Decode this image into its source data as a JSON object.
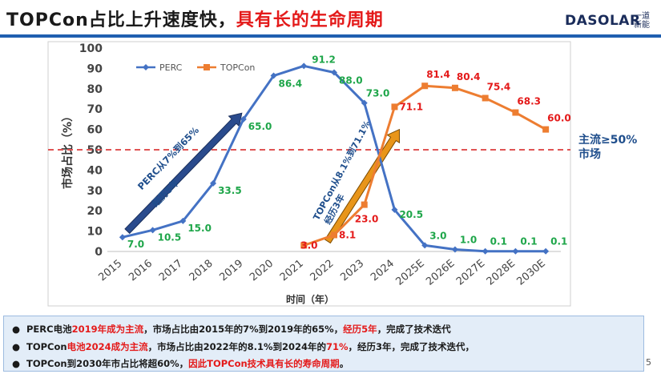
{
  "header": {
    "title_black": "TOPCon占比上升速度快，",
    "title_red": "具有长的生命周期",
    "logo_brand": "DASOLAR",
    "logo_sub_line1": "一道",
    "logo_sub_line2": "新能"
  },
  "chart_data": {
    "type": "line",
    "categories": [
      "2015",
      "2016",
      "2017",
      "2018",
      "2019",
      "2020",
      "2021",
      "2022",
      "2023",
      "2024",
      "2025E",
      "2026E",
      "2027E",
      "2028E",
      "2030E"
    ],
    "series": [
      {
        "name": "PERC",
        "color": "#4472c4",
        "label_color": "#1fa64a",
        "values": [
          7.0,
          10.5,
          15.0,
          33.5,
          65.0,
          86.4,
          91.2,
          88.0,
          73.0,
          20.5,
          3.0,
          1.0,
          0.1,
          0.1,
          0.1
        ],
        "labels": [
          "7.0",
          "10.5",
          "15.0",
          "33.5",
          "65.0",
          "86.4",
          "91.2",
          "88.0",
          "73.0",
          "20.5",
          "3.0",
          "1.0",
          "0.1",
          "0.1",
          "0.1"
        ]
      },
      {
        "name": "TOPCon",
        "color": "#ed7d31",
        "label_color": "#e41a1a",
        "values": [
          null,
          null,
          null,
          null,
          null,
          null,
          3.0,
          8.1,
          23.0,
          71.1,
          81.4,
          80.4,
          75.4,
          68.3,
          60.0
        ],
        "labels": [
          "",
          "",
          "",
          "",
          "",
          "",
          "3.0",
          "8.1",
          "23.0",
          "71.1",
          "81.4",
          "80.4",
          "75.4",
          "68.3",
          "60.0"
        ]
      }
    ],
    "ylabel": "市场占比（%）",
    "xlabel": "时间（年）",
    "ylim": [
      0,
      100
    ],
    "yticks": [
      "0",
      "10",
      "20",
      "30",
      "40",
      "50",
      "60",
      "70",
      "80",
      "90",
      "100"
    ],
    "threshold": {
      "value": 50,
      "label_line1": "主流≥50%",
      "label_line2": "市场",
      "color": "#e05555"
    },
    "annotations": [
      {
        "line1": "PERC从7%到65%",
        "line2": "经历5年"
      },
      {
        "line1": "TOPCon从8.1%到71.1%",
        "line2": "经历3年"
      }
    ],
    "legend_position": "top-left"
  },
  "notes": [
    {
      "segments": [
        [
          "PERC电池",
          ""
        ],
        [
          "2019年成为主流",
          "red"
        ],
        [
          "，市场占比由2015年的7%到2019年的65%，",
          ""
        ],
        [
          "经历5年",
          "red"
        ],
        [
          "，完成了技术迭代",
          ""
        ]
      ]
    },
    {
      "segments": [
        [
          "TOPCon",
          ""
        ],
        [
          "电池2024成为主流",
          "red"
        ],
        [
          "，市场占比由2022年的8.1%到2024年的",
          ""
        ],
        [
          "71%",
          "red"
        ],
        [
          "，经历3年，完成了技术迭代，",
          ""
        ]
      ]
    },
    {
      "segments": [
        [
          "TOPCon到2030年市占比将超60%，",
          ""
        ],
        [
          "因此TOPCon技术具有长的寿命周期",
          "red"
        ],
        [
          "。",
          ""
        ]
      ]
    }
  ],
  "page_number": "5"
}
